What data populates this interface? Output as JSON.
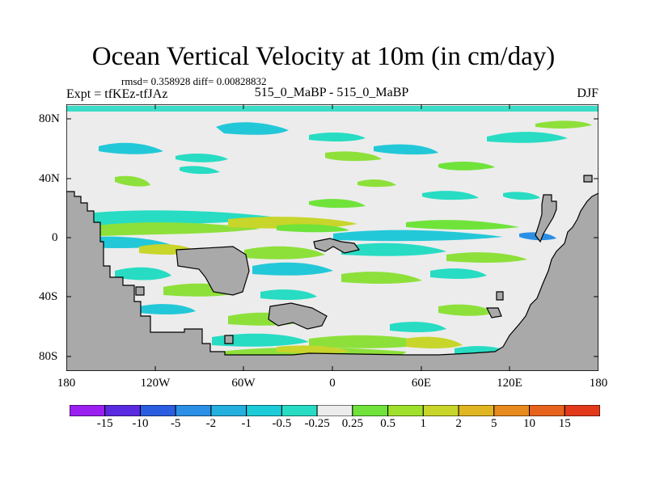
{
  "title": "Ocean Vertical Velocity at 10m (in cm/day)",
  "stats": "rmsd= 0.358928  diff= 0.00828832",
  "experiment": "Expt = tfKEz-tfJAz",
  "case": "515_0_MaBP - 515_0_MaBP",
  "season": "DJF",
  "map": {
    "land_color": "#a9a9a9",
    "background_color": "#ececec",
    "y_ticks": [
      "80N",
      "40N",
      "0",
      "40S",
      "80S"
    ],
    "x_ticks": [
      "180",
      "120W",
      "60W",
      "0",
      "60E",
      "120E",
      "180"
    ]
  },
  "colorbar": {
    "colors": [
      "#9a1ff0",
      "#5a2ae0",
      "#2a5de0",
      "#2b8fe6",
      "#23b0de",
      "#1ccbd8",
      "#27dcc3",
      "#ececec",
      "#6fe33a",
      "#9fe02c",
      "#c8d52a",
      "#e0b522",
      "#e88a1e",
      "#e7631c",
      "#e2391a"
    ],
    "labels": [
      "-15",
      "-10",
      "-5",
      "-2",
      "-1",
      "-0.5",
      "-0.25",
      "0.25",
      "0.5",
      "1",
      "2",
      "5",
      "10",
      "15"
    ]
  }
}
